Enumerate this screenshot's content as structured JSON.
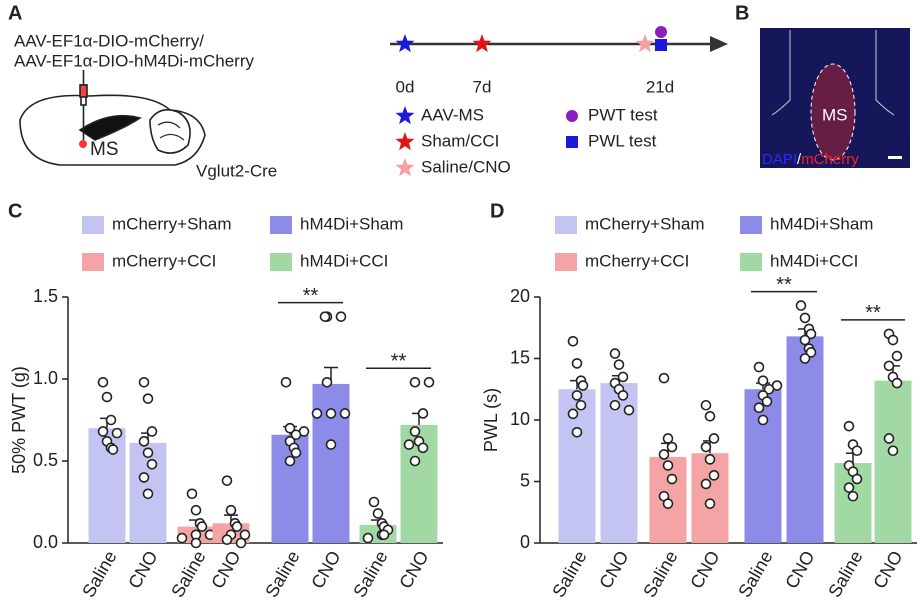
{
  "panels": {
    "A": {
      "label": "A",
      "virus": [
        "AAV-EF1α-DIO-mCherry/",
        "AAV-EF1α-DIO-hM4Di-mCherry"
      ],
      "region": "MS",
      "mouse": "Vglut2-Cre",
      "timeline": {
        "days": [
          "0d",
          "7d",
          "21d"
        ],
        "legend": [
          {
            "text": "AAV-MS",
            "color": "#1a1adb",
            "shape": "star"
          },
          {
            "text": "Sham/CCI",
            "color": "#e01515",
            "shape": "star"
          },
          {
            "text": "Saline/CNO",
            "color": "#f4a0a0",
            "shape": "star"
          },
          {
            "text": "PWT test",
            "color": "#8a1fc0",
            "shape": "circle"
          },
          {
            "text": "PWL test",
            "color": "#1a1adb",
            "shape": "square"
          }
        ]
      }
    },
    "B": {
      "label": "B",
      "region": "MS",
      "stain": [
        "DAPI",
        "/",
        "mCherry"
      ]
    }
  },
  "chart_data": [
    {
      "type": "bar",
      "panel": "C",
      "ylabel": "50% PWT (g)",
      "categories": [
        "Saline",
        "CNO"
      ],
      "ylim": [
        0,
        1.5
      ],
      "yticks": [
        {
          "value": 0,
          "label": "0.0"
        },
        0.5,
        {
          "value": 1,
          "label": "1.0"
        },
        1.5
      ],
      "series": [
        {
          "name": "mCherry+Sham",
          "color": "#c4c4f3",
          "values": [
            0.7,
            0.61
          ],
          "errors": [
            0.06,
            0.06
          ],
          "points": [
            [
              0.98,
              0.89,
              0.75,
              0.68,
              0.62,
              0.58,
              0.57,
              0.67
            ],
            [
              0.98,
              0.88,
              0.68,
              0.62,
              0.55,
              0.48,
              0.4,
              0.3
            ]
          ]
        },
        {
          "name": "mCherry+CCI",
          "color": "#f4a4a4",
          "values": [
            0.1,
            0.12
          ],
          "errors": [
            0.04,
            0.05
          ],
          "points": [
            [
              0.3,
              0.2,
              0.12,
              0.1,
              0.05,
              0.05,
              0.03,
              0.0
            ],
            [
              0.38,
              0.2,
              0.12,
              0.1,
              0.05,
              0.05,
              0.02,
              0.0
            ]
          ]
        },
        {
          "name": "hM4Di+Sham",
          "color": "#8c8ce8",
          "values": [
            0.66,
            0.97
          ],
          "errors": [
            0.05,
            0.1
          ],
          "significance": "**",
          "points": [
            [
              0.98,
              0.7,
              0.68,
              0.66,
              0.62,
              0.58,
              0.55,
              0.5
            ],
            [
              1.38,
              1.38,
              1.38,
              0.98,
              0.79,
              0.79,
              0.79,
              0.6
            ]
          ]
        },
        {
          "name": "hM4Di+CCI",
          "color": "#a2d8a4",
          "values": [
            0.11,
            0.72
          ],
          "errors": [
            0.03,
            0.07
          ],
          "significance": "**",
          "points": [
            [
              0.25,
              0.18,
              0.12,
              0.1,
              0.08,
              0.05,
              0.05,
              0.03
            ],
            [
              0.98,
              0.98,
              0.79,
              0.68,
              0.62,
              0.58,
              0.5,
              0.6
            ]
          ]
        }
      ]
    },
    {
      "type": "bar",
      "panel": "D",
      "ylabel": "PWL (s)",
      "categories": [
        "Saline",
        "CNO"
      ],
      "ylim": [
        0,
        20
      ],
      "yticks": [
        0,
        5,
        10,
        15,
        20
      ],
      "series": [
        {
          "name": "mCherry+Sham",
          "color": "#c4c4f3",
          "values": [
            12.5,
            13.0
          ],
          "errors": [
            0.7,
            0.6
          ],
          "points": [
            [
              16.4,
              14.6,
              13.2,
              12.8,
              12.0,
              11.2,
              10.5,
              9.0
            ],
            [
              15.4,
              14.5,
              13.5,
              13.0,
              12.5,
              12.0,
              11.2,
              10.8
            ]
          ]
        },
        {
          "name": "mCherry+CCI",
          "color": "#f4a4a4",
          "values": [
            7.0,
            7.3
          ],
          "errors": [
            1.1,
            1.0
          ],
          "points": [
            [
              13.4,
              8.5,
              7.8,
              7.2,
              6.3,
              5.2,
              3.8,
              3.2
            ],
            [
              11.2,
              10.3,
              8.5,
              7.8,
              6.8,
              5.5,
              4.8,
              3.2
            ]
          ]
        },
        {
          "name": "hM4Di+Sham",
          "color": "#8c8ce8",
          "values": [
            12.5,
            16.8
          ],
          "errors": [
            0.5,
            0.6
          ],
          "significance": "**",
          "points": [
            [
              14.3,
              13.2,
              12.8,
              12.5,
              12.0,
              11.5,
              11.0,
              10.0
            ],
            [
              19.3,
              18.3,
              17.4,
              17.0,
              16.5,
              15.8,
              15.5,
              15.0
            ]
          ]
        },
        {
          "name": "hM4Di+CCI",
          "color": "#a2d8a4",
          "values": [
            6.5,
            13.2
          ],
          "errors": [
            0.8,
            1.2
          ],
          "significance": "**",
          "points": [
            [
              9.5,
              8.0,
              7.5,
              6.3,
              5.8,
              5.2,
              4.5,
              3.8
            ],
            [
              17.0,
              16.5,
              15.2,
              14.4,
              13.5,
              13.0,
              8.5,
              7.5
            ]
          ]
        }
      ]
    }
  ]
}
